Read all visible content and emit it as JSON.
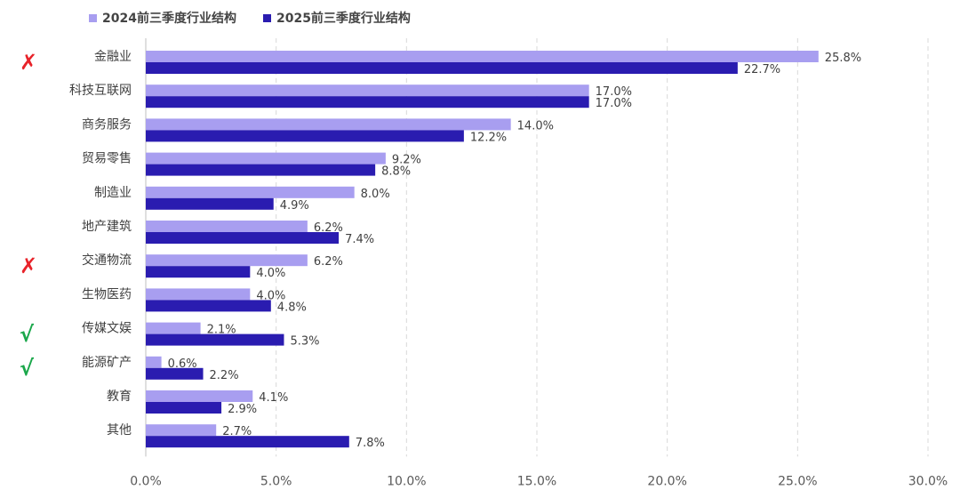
{
  "legend": {
    "series_2024": "2024前三季度行业结构",
    "series_2025": "2025前三季度行业结构"
  },
  "markers": [
    {
      "category": "金融业",
      "symbol": "✗",
      "kind": "cross"
    },
    {
      "category": "交通物流",
      "symbol": "✗",
      "kind": "cross"
    },
    {
      "category": "传媒文娱",
      "symbol": "√",
      "kind": "check"
    },
    {
      "category": "能源矿产",
      "symbol": "√",
      "kind": "check"
    }
  ],
  "colors": {
    "series_2024": "#a89ef0",
    "series_2025": "#2a1cb0",
    "cross": "#e8232a",
    "check": "#1aa74a"
  },
  "chart_data": {
    "type": "bar",
    "orientation": "horizontal",
    "categories": [
      "金融业",
      "科技互联网",
      "商务服务",
      "贸易零售",
      "制造业",
      "地产建筑",
      "交通物流",
      "生物医药",
      "传媒文娱",
      "能源矿产",
      "教育",
      "其他"
    ],
    "series": [
      {
        "name": "2024前三季度行业结构",
        "values": [
          25.8,
          17.0,
          14.0,
          9.2,
          8.0,
          6.2,
          6.2,
          4.0,
          2.1,
          0.6,
          4.1,
          2.7
        ]
      },
      {
        "name": "2025前三季度行业结构",
        "values": [
          22.7,
          17.0,
          12.2,
          8.8,
          4.9,
          7.4,
          4.0,
          4.8,
          5.3,
          2.2,
          2.9,
          7.8
        ]
      }
    ],
    "value_labels": [
      [
        "25.8%",
        "17.0%",
        "14.0%",
        "9.2%",
        "8.0%",
        "6.2%",
        "6.2%",
        "4.0%",
        "2.1%",
        "0.6%",
        "4.1%",
        "2.7%"
      ],
      [
        "22.7%",
        "17.0%",
        "12.2%",
        "8.8%",
        "4.9%",
        "7.4%",
        "4.0%",
        "4.8%",
        "5.3%",
        "2.2%",
        "2.9%",
        "7.8%"
      ]
    ],
    "xlim": [
      0,
      30
    ],
    "x_ticks": [
      "0.0%",
      "5.0%",
      "10.0%",
      "15.0%",
      "20.0%",
      "25.0%",
      "30.0%"
    ],
    "grid": "vertical dashed",
    "legend_position": "top-left"
  }
}
